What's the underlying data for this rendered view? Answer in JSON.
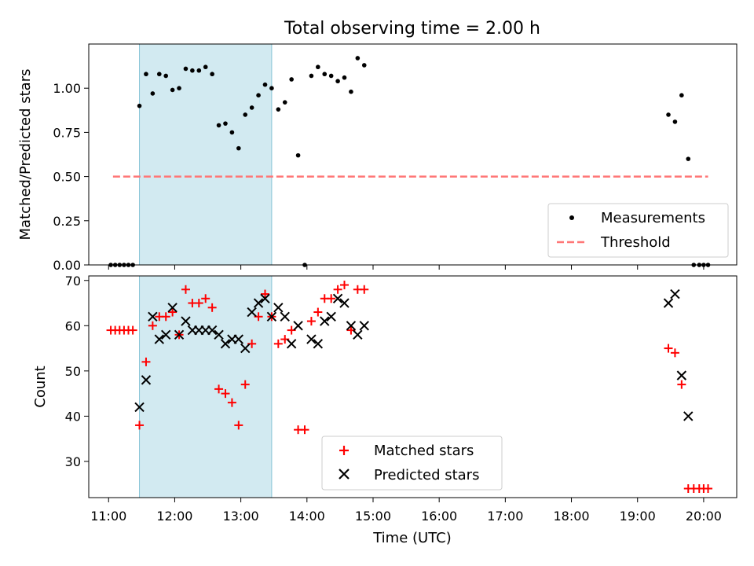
{
  "title": "Total observing time = 2.00 h",
  "colors": {
    "measurements": "#000000",
    "threshold": "#ff7777",
    "matched": "#ff0000",
    "predicted": "#000000",
    "observing_band": "#add8e6"
  },
  "x_tick_labels": [
    "11:00",
    "12:00",
    "13:00",
    "14:00",
    "15:00",
    "16:00",
    "17:00",
    "18:00",
    "19:00",
    "20:00"
  ],
  "chart_data": [
    {
      "type": "scatter",
      "ylabel": "Matched/Predicted stars",
      "xlabel": "",
      "xlim": [
        "10:42",
        "20:30"
      ],
      "ylim": [
        0,
        1.25
      ],
      "y_ticks": [
        0.0,
        0.25,
        0.5,
        0.75,
        1.0
      ],
      "y_tick_labels": [
        "0.00",
        "0.25",
        "0.50",
        "0.75",
        "1.00"
      ],
      "shaded_span": [
        "11:28",
        "13:28"
      ],
      "legend": {
        "position": "lower right",
        "entries": [
          "Measurements",
          "Threshold"
        ]
      },
      "series": [
        {
          "name": "Measurements",
          "marker": "dot",
          "points": [
            [
              "11:02",
              0.0
            ],
            [
              "11:06",
              0.0
            ],
            [
              "11:10",
              0.0
            ],
            [
              "11:14",
              0.0
            ],
            [
              "11:18",
              0.0
            ],
            [
              "11:22",
              0.0
            ],
            [
              "11:28",
              0.9
            ],
            [
              "11:34",
              1.08
            ],
            [
              "11:40",
              0.97
            ],
            [
              "11:46",
              1.08
            ],
            [
              "11:52",
              1.07
            ],
            [
              "11:58",
              0.99
            ],
            [
              "12:04",
              1.0
            ],
            [
              "12:10",
              1.11
            ],
            [
              "12:16",
              1.1
            ],
            [
              "12:22",
              1.1
            ],
            [
              "12:28",
              1.12
            ],
            [
              "12:34",
              1.08
            ],
            [
              "12:40",
              0.79
            ],
            [
              "12:46",
              0.8
            ],
            [
              "12:52",
              0.75
            ],
            [
              "12:58",
              0.66
            ],
            [
              "13:04",
              0.85
            ],
            [
              "13:10",
              0.89
            ],
            [
              "13:16",
              0.96
            ],
            [
              "13:22",
              1.02
            ],
            [
              "13:28",
              1.0
            ],
            [
              "13:34",
              0.88
            ],
            [
              "13:40",
              0.92
            ],
            [
              "13:46",
              1.05
            ],
            [
              "13:52",
              0.62
            ],
            [
              "13:58",
              0.0
            ],
            [
              "14:04",
              1.07
            ],
            [
              "14:10",
              1.12
            ],
            [
              "14:16",
              1.08
            ],
            [
              "14:22",
              1.07
            ],
            [
              "14:28",
              1.04
            ],
            [
              "14:34",
              1.06
            ],
            [
              "14:40",
              0.98
            ],
            [
              "14:46",
              1.17
            ],
            [
              "14:52",
              1.13
            ],
            [
              "19:28",
              0.85
            ],
            [
              "19:34",
              0.81
            ],
            [
              "19:40",
              0.96
            ],
            [
              "19:46",
              0.6
            ],
            [
              "19:51",
              0.0
            ],
            [
              "19:56",
              0.0
            ],
            [
              "20:00",
              0.0
            ],
            [
              "20:04",
              0.0
            ]
          ]
        },
        {
          "name": "Threshold",
          "style": "dashed",
          "points": [
            [
              "11:04",
              0.5
            ],
            [
              "20:04",
              0.5
            ]
          ]
        }
      ]
    },
    {
      "type": "scatter",
      "ylabel": "Count",
      "xlabel": "Time (UTC)",
      "xlim": [
        "10:42",
        "20:30"
      ],
      "ylim": [
        22,
        71
      ],
      "y_ticks": [
        30,
        40,
        50,
        60,
        70
      ],
      "y_tick_labels": [
        "30",
        "40",
        "50",
        "60",
        "70"
      ],
      "shaded_span": [
        "11:28",
        "13:28"
      ],
      "legend": {
        "position": "lower center",
        "entries": [
          "Matched stars",
          "Predicted stars"
        ]
      },
      "series": [
        {
          "name": "Matched stars",
          "marker": "plus",
          "points": [
            [
              "11:02",
              59
            ],
            [
              "11:06",
              59
            ],
            [
              "11:10",
              59
            ],
            [
              "11:14",
              59
            ],
            [
              "11:18",
              59
            ],
            [
              "11:22",
              59
            ],
            [
              "11:28",
              38
            ],
            [
              "11:34",
              52
            ],
            [
              "11:40",
              60
            ],
            [
              "11:46",
              62
            ],
            [
              "11:52",
              62
            ],
            [
              "11:58",
              63
            ],
            [
              "12:04",
              58
            ],
            [
              "12:10",
              68
            ],
            [
              "12:16",
              65
            ],
            [
              "12:22",
              65
            ],
            [
              "12:28",
              66
            ],
            [
              "12:34",
              64
            ],
            [
              "12:40",
              46
            ],
            [
              "12:46",
              45
            ],
            [
              "12:52",
              43
            ],
            [
              "12:58",
              38
            ],
            [
              "13:04",
              47
            ],
            [
              "13:10",
              56
            ],
            [
              "13:16",
              62
            ],
            [
              "13:22",
              67
            ],
            [
              "13:28",
              62
            ],
            [
              "13:34",
              56
            ],
            [
              "13:40",
              57
            ],
            [
              "13:46",
              59
            ],
            [
              "13:52",
              37
            ],
            [
              "13:58",
              37
            ],
            [
              "14:04",
              61
            ],
            [
              "14:10",
              63
            ],
            [
              "14:16",
              66
            ],
            [
              "14:22",
              66
            ],
            [
              "14:28",
              68
            ],
            [
              "14:34",
              69
            ],
            [
              "14:40",
              59
            ],
            [
              "14:46",
              68
            ],
            [
              "14:52",
              68
            ],
            [
              "19:28",
              55
            ],
            [
              "19:34",
              54
            ],
            [
              "19:40",
              47
            ],
            [
              "19:46",
              24
            ],
            [
              "19:51",
              24
            ],
            [
              "19:56",
              24
            ],
            [
              "20:00",
              24
            ],
            [
              "20:04",
              24
            ]
          ]
        },
        {
          "name": "Predicted stars",
          "marker": "x",
          "points": [
            [
              "11:28",
              42
            ],
            [
              "11:34",
              48
            ],
            [
              "11:40",
              62
            ],
            [
              "11:46",
              57
            ],
            [
              "11:52",
              58
            ],
            [
              "11:58",
              64
            ],
            [
              "12:04",
              58
            ],
            [
              "12:10",
              61
            ],
            [
              "12:16",
              59
            ],
            [
              "12:22",
              59
            ],
            [
              "12:28",
              59
            ],
            [
              "12:34",
              59
            ],
            [
              "12:40",
              58
            ],
            [
              "12:46",
              56
            ],
            [
              "12:52",
              57
            ],
            [
              "12:58",
              57
            ],
            [
              "13:04",
              55
            ],
            [
              "13:10",
              63
            ],
            [
              "13:16",
              65
            ],
            [
              "13:22",
              66
            ],
            [
              "13:28",
              62
            ],
            [
              "13:34",
              64
            ],
            [
              "13:40",
              62
            ],
            [
              "13:46",
              56
            ],
            [
              "13:52",
              60
            ],
            [
              "14:04",
              57
            ],
            [
              "14:10",
              56
            ],
            [
              "14:16",
              61
            ],
            [
              "14:22",
              62
            ],
            [
              "14:28",
              66
            ],
            [
              "14:34",
              65
            ],
            [
              "14:40",
              60
            ],
            [
              "14:46",
              58
            ],
            [
              "14:52",
              60
            ],
            [
              "19:28",
              65
            ],
            [
              "19:34",
              67
            ],
            [
              "19:40",
              49
            ],
            [
              "19:46",
              40
            ]
          ]
        }
      ]
    }
  ]
}
